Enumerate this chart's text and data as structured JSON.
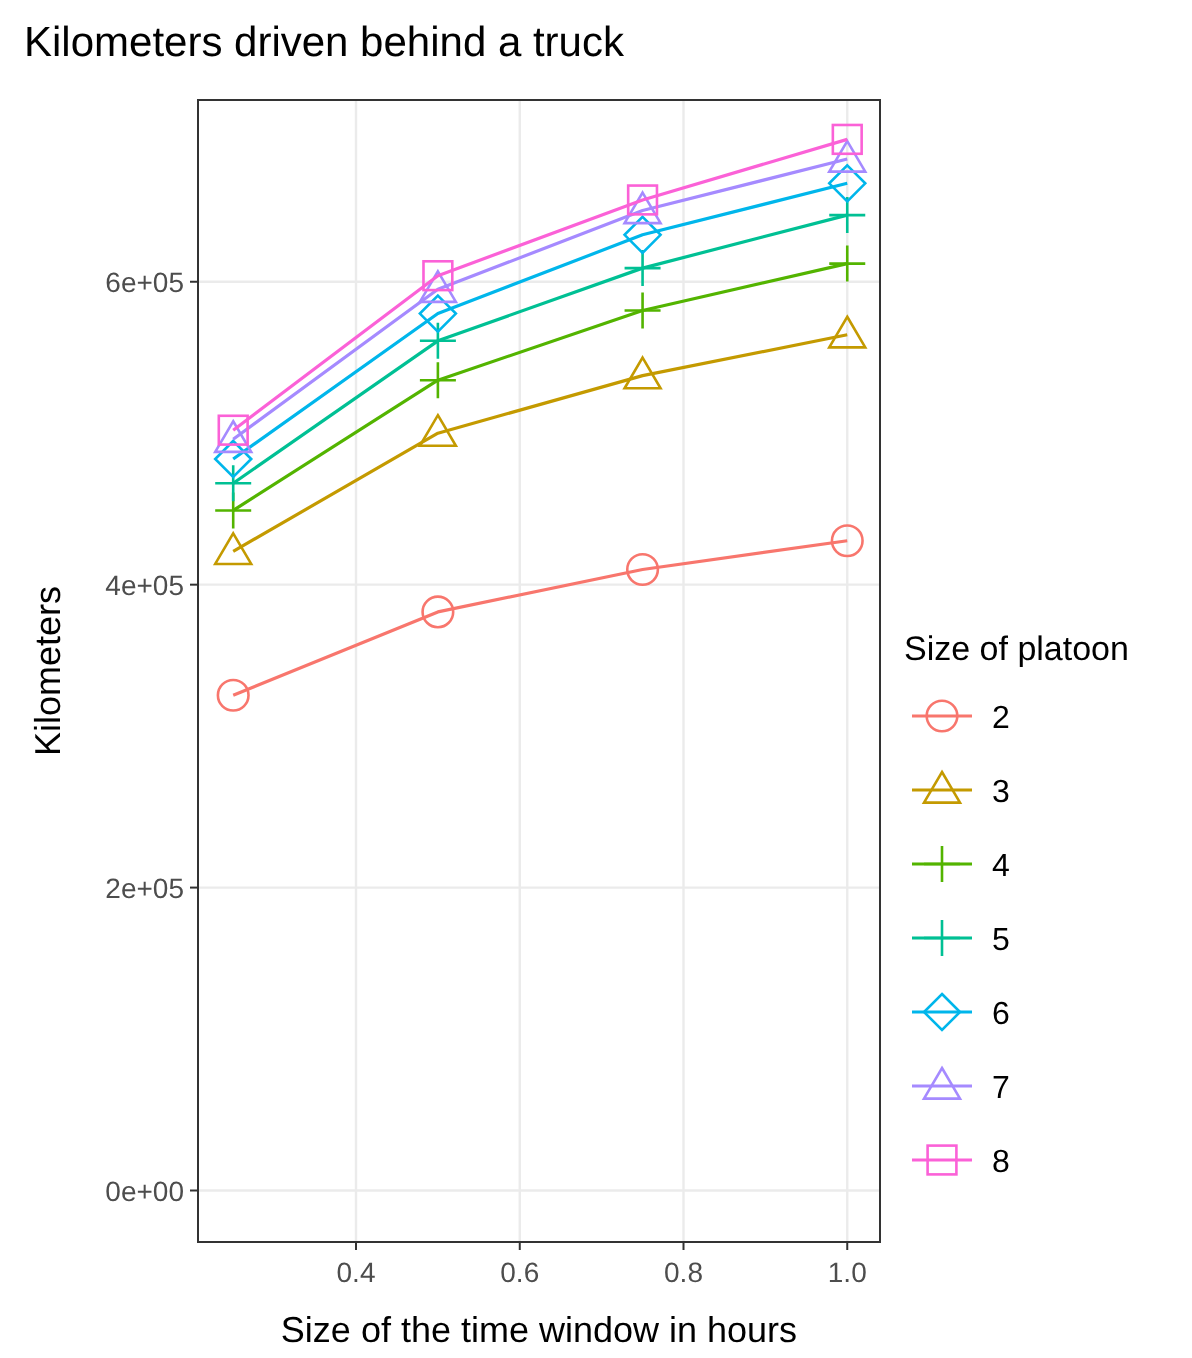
{
  "chart_data": {
    "type": "line",
    "title": "Kilometers driven behind a truck",
    "xlabel": "Size of the time window in hours",
    "ylabel": "Kilometers",
    "legend_title": "Size of platoon",
    "x": [
      0.25,
      0.5,
      0.75,
      1.0
    ],
    "xlim": [
      0.207,
      1.04
    ],
    "xticks": [
      {
        "value": 0.4,
        "label": "0.4"
      },
      {
        "value": 0.6,
        "label": "0.6"
      },
      {
        "value": 0.8,
        "label": "0.8"
      },
      {
        "value": 1.0,
        "label": "1.0"
      }
    ],
    "ylim": [
      -34000,
      720000
    ],
    "yticks": [
      {
        "value": 0,
        "label": "0e+00"
      },
      {
        "value": 200000,
        "label": "2e+05"
      },
      {
        "value": 400000,
        "label": "4e+05"
      },
      {
        "value": 600000,
        "label": "6e+05"
      }
    ],
    "grid": true,
    "legend": "right",
    "line_style": "solid",
    "series": [
      {
        "name": "2",
        "color": "#f8766d",
        "marker": "circle",
        "values": [
          327000,
          382000,
          410000,
          429000
        ]
      },
      {
        "name": "3",
        "color": "#c49a00",
        "marker": "triangle",
        "values": [
          422000,
          500000,
          538000,
          565000
        ]
      },
      {
        "name": "4",
        "color": "#53b400",
        "marker": "cross",
        "values": [
          449000,
          535000,
          581000,
          612000
        ]
      },
      {
        "name": "5",
        "color": "#00c094",
        "marker": "cross",
        "values": [
          467000,
          561000,
          609000,
          644000
        ]
      },
      {
        "name": "6",
        "color": "#00b6eb",
        "marker": "diamond",
        "values": [
          483000,
          579000,
          631000,
          665000
        ]
      },
      {
        "name": "7",
        "color": "#a58aff",
        "marker": "triangle",
        "values": [
          496000,
          595000,
          647000,
          681000
        ]
      },
      {
        "name": "8",
        "color": "#fb61d7",
        "marker": "square",
        "values": [
          502000,
          604000,
          654000,
          694000
        ]
      }
    ]
  }
}
